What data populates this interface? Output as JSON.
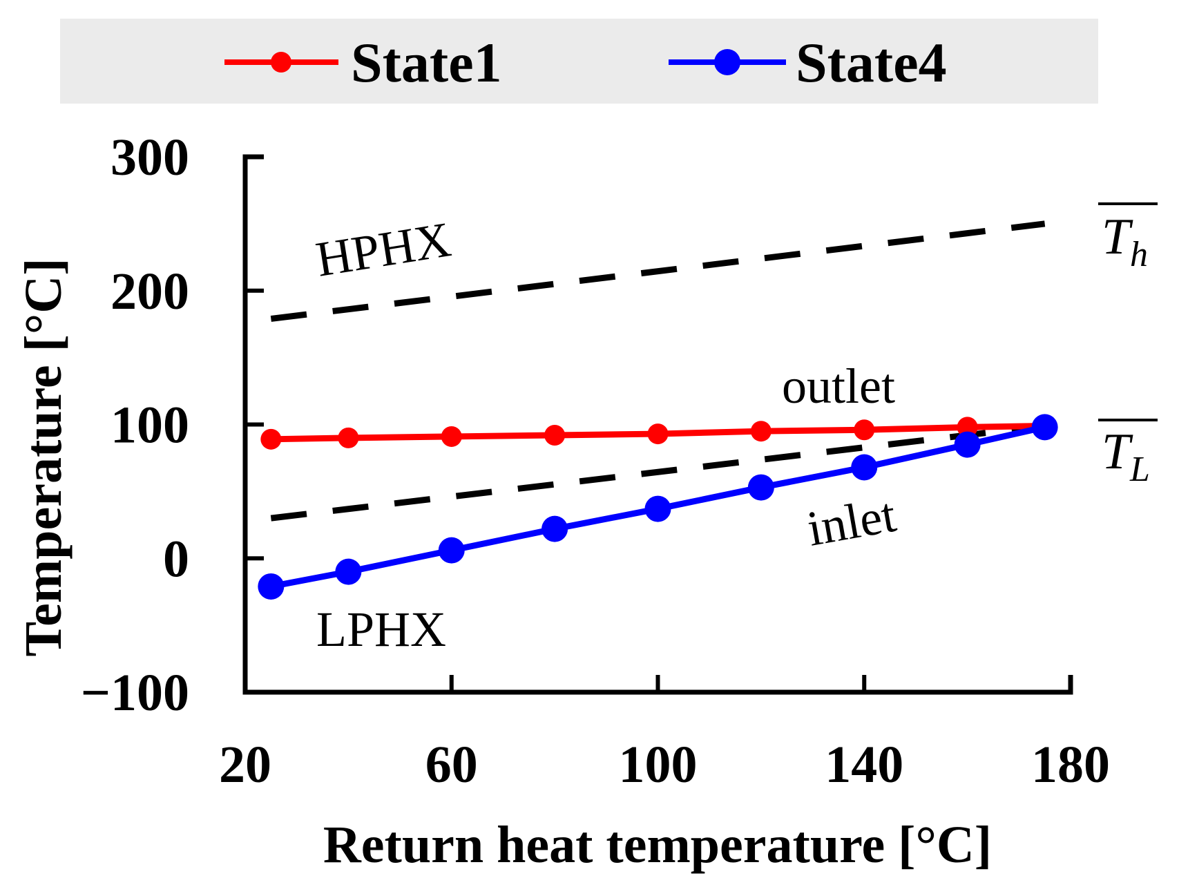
{
  "chart_data": {
    "type": "line",
    "xlabel": "Return heat temperature [°C]",
    "ylabel": "Temperature [°C]",
    "xlim": [
      20,
      180
    ],
    "ylim": [
      -100,
      300
    ],
    "xticks": [
      20,
      60,
      100,
      140,
      180
    ],
    "yticks": [
      -100,
      0,
      100,
      200,
      300
    ],
    "x_tick_labels": [
      "20",
      "60",
      "100",
      "140",
      "180"
    ],
    "y_tick_labels": [
      "−100",
      "0",
      "100",
      "200",
      "300"
    ],
    "legend": {
      "position": "top",
      "entries": [
        "State1",
        "State4"
      ]
    },
    "series": [
      {
        "name": "State1",
        "color": "#ff0000",
        "marker": "circle",
        "x": [
          25,
          40,
          60,
          80,
          100,
          120,
          140,
          160,
          175
        ],
        "y": [
          89,
          90,
          91,
          92,
          93,
          95,
          96,
          98,
          99
        ]
      },
      {
        "name": "State4",
        "color": "#0000ff",
        "marker": "circle",
        "x": [
          25,
          40,
          60,
          80,
          100,
          120,
          140,
          160,
          175
        ],
        "y": [
          -21,
          -10,
          6,
          22,
          37,
          53,
          68,
          85,
          98
        ]
      }
    ],
    "reference_lines": [
      {
        "name": "Th_bar",
        "label_base": "T",
        "label_sub": "h",
        "style": "dashed",
        "color": "#000000",
        "x": [
          25,
          175
        ],
        "y": [
          179,
          250
        ]
      },
      {
        "name": "TL_bar",
        "label_base": "T",
        "label_sub": "L",
        "style": "dashed",
        "color": "#000000",
        "x": [
          25,
          175
        ],
        "y": [
          30,
          99
        ]
      }
    ],
    "annotations": {
      "hphx": "HPHX",
      "lphx": "LPHX",
      "outlet": "outlet",
      "inlet": "inlet"
    }
  }
}
